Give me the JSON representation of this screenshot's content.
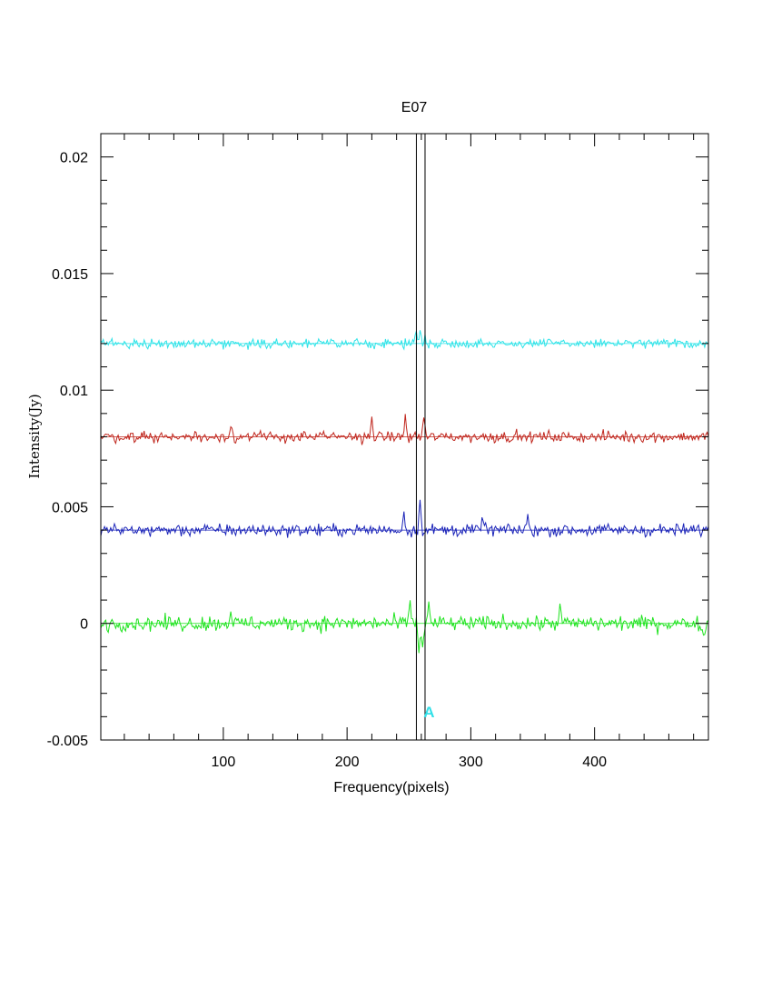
{
  "chart_data": {
    "type": "line",
    "title": "E07",
    "xlabel": "Frequency(pixels)",
    "ylabel": "Intensity(Jy)",
    "xlim": [
      1,
      492
    ],
    "ylim": [
      -0.005,
      0.021
    ],
    "x_ticks": [
      100,
      200,
      300,
      400
    ],
    "y_ticks": [
      -0.005,
      0,
      0.005,
      0.01,
      0.015,
      0.02
    ],
    "y_tick_labels": [
      "-0.005",
      "0",
      "0.005",
      "0.01",
      "0.015",
      "0.02"
    ],
    "grid": false,
    "legend": "none",
    "vertical_lines": [
      256,
      263
    ],
    "marker": {
      "label": "A",
      "x": 264,
      "color": "#33e0e8"
    },
    "series": [
      {
        "color": "#2de3e8",
        "baseline": 0.012,
        "noise": 0.00018,
        "features": [
          {
            "x": 256,
            "amp": 0.0006
          },
          {
            "x": 259,
            "amp": 0.0005
          },
          {
            "x": 263,
            "amp": 0.0003
          }
        ]
      },
      {
        "color": "#c0271e",
        "baseline": 0.008,
        "noise": 0.00022,
        "features": [
          {
            "x": 106,
            "amp": 0.0006
          },
          {
            "x": 220,
            "amp": 0.0008
          },
          {
            "x": 247,
            "amp": 0.0008
          },
          {
            "x": 262,
            "amp": 0.0009
          }
        ]
      },
      {
        "color": "#1a23b8",
        "baseline": 0.004,
        "noise": 0.00025,
        "features": [
          {
            "x": 246,
            "amp": 0.0007
          },
          {
            "x": 259,
            "amp": 0.0013
          },
          {
            "x": 310,
            "amp": 0.0007
          },
          {
            "x": 346,
            "amp": 0.0006
          }
        ]
      },
      {
        "color": "#1ee31e",
        "baseline": 0.0,
        "noise": 0.0003,
        "features": [
          {
            "x": 251,
            "amp": 0.001
          },
          {
            "x": 258,
            "amp": -0.0012
          },
          {
            "x": 261,
            "amp": -0.0011
          },
          {
            "x": 266,
            "amp": 0.0008
          },
          {
            "x": 106,
            "amp": 0.0006
          },
          {
            "x": 372,
            "amp": 0.0008
          },
          {
            "x": 488,
            "amp": -0.0007
          }
        ]
      }
    ]
  }
}
